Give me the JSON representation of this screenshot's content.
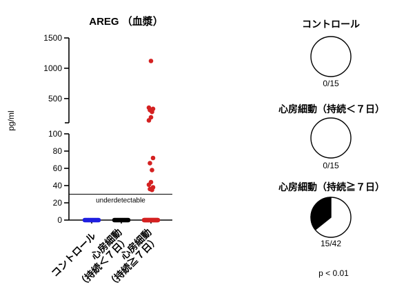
{
  "chart_data": [
    {
      "type": "scatter",
      "title": "AREG （血漿）",
      "ylabel": "pg/ml",
      "grid": false,
      "categories": [
        [
          "コントロール"
        ],
        [
          "心房細動",
          "（持続＜７日）"
        ],
        [
          "心房細動",
          "（持続≧７日）"
        ]
      ],
      "y_axis": {
        "broken": true,
        "segments": [
          {
            "range": [
              0,
              100
            ],
            "ticks": [
              0,
              20,
              40,
              60,
              80,
              100
            ]
          },
          {
            "range": [
              100,
              1500
            ],
            "ticks": [
              500,
              1000,
              1500
            ]
          }
        ]
      },
      "threshold": {
        "value": 30,
        "label": "underdetectable"
      },
      "series": [
        {
          "color": "#1f1fe0",
          "values": [
            0,
            0,
            0,
            0,
            0,
            0,
            0,
            0,
            0,
            0,
            0,
            0,
            0,
            0,
            0
          ]
        },
        {
          "color": "#000000",
          "values": [
            0,
            0,
            0,
            0,
            0,
            0,
            0,
            0,
            0,
            0,
            0,
            0,
            0,
            0,
            0
          ]
        },
        {
          "color": "#d42121",
          "values": [
            1120,
            350,
            330,
            310,
            280,
            190,
            140,
            72,
            66,
            58,
            44,
            41,
            38,
            36,
            35,
            0,
            0,
            0,
            0,
            0,
            0,
            0,
            0,
            0,
            0,
            0,
            0,
            0,
            0,
            0,
            0,
            0,
            0,
            0,
            0,
            0,
            0,
            0,
            0,
            0,
            0,
            0
          ]
        }
      ]
    },
    {
      "type": "pie",
      "title": "コントロール",
      "values": [
        0,
        15
      ],
      "colors": [
        "#000000",
        "#ffffff"
      ],
      "label": "0/15"
    },
    {
      "type": "pie",
      "title": "心房細動（持続＜７日）",
      "values": [
        0,
        15
      ],
      "colors": [
        "#000000",
        "#ffffff"
      ],
      "label": "0/15"
    },
    {
      "type": "pie",
      "title": "心房細動（持続≧７日）",
      "values": [
        15,
        27
      ],
      "colors": [
        "#000000",
        "#ffffff"
      ],
      "label": "15/42"
    }
  ],
  "p_value": "p < 0.01"
}
